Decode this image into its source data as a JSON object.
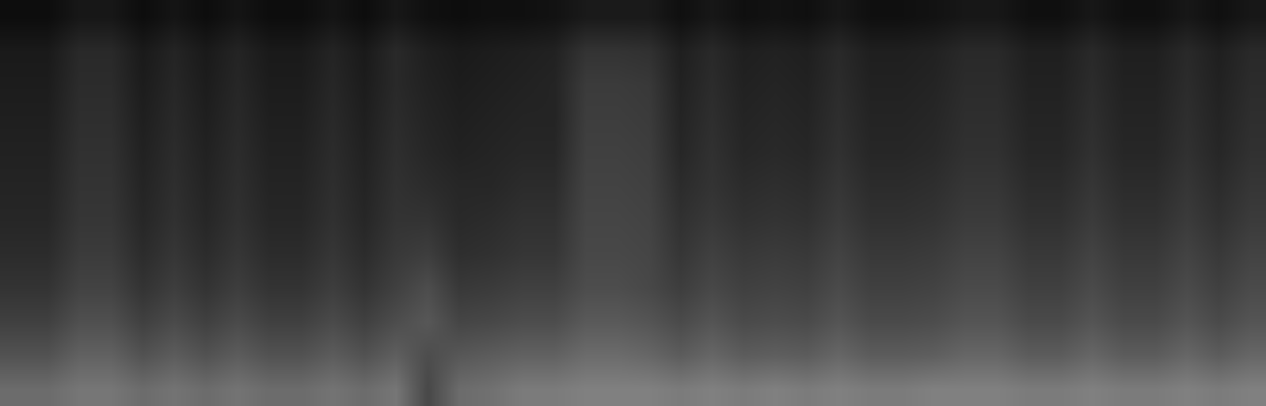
{
  "chart_data": {
    "type": "heatmap",
    "tick_labels": false,
    "grid": false,
    "zlim": [
      0,
      1
    ],
    "cells": [
      [
        0.42,
        0.42,
        0.46,
        0.46,
        0.42,
        0.45,
        0.42,
        0.45,
        0.42,
        0.42,
        0.45,
        0.42,
        0.46,
        0.28,
        0.42,
        0.44,
        0.48,
        0.48,
        0.5,
        0.5,
        0.5,
        0.48,
        0.5,
        0.48,
        0.5,
        0.48,
        0.5,
        0.48,
        0.48,
        0.5,
        0.5,
        0.5,
        0.48,
        0.48,
        0.5,
        0.48,
        0.48,
        0.5,
        0.48,
        0.5
      ],
      [
        0.32,
        0.32,
        0.38,
        0.38,
        0.32,
        0.36,
        0.32,
        0.36,
        0.32,
        0.32,
        0.36,
        0.32,
        0.37,
        0.3,
        0.34,
        0.36,
        0.38,
        0.38,
        0.42,
        0.42,
        0.4,
        0.36,
        0.4,
        0.36,
        0.37,
        0.36,
        0.4,
        0.36,
        0.36,
        0.37,
        0.4,
        0.4,
        0.36,
        0.36,
        0.4,
        0.36,
        0.36,
        0.4,
        0.36,
        0.4
      ],
      [
        0.25,
        0.25,
        0.31,
        0.31,
        0.25,
        0.29,
        0.25,
        0.29,
        0.25,
        0.25,
        0.29,
        0.25,
        0.3,
        0.34,
        0.27,
        0.28,
        0.3,
        0.3,
        0.35,
        0.35,
        0.33,
        0.29,
        0.33,
        0.29,
        0.3,
        0.29,
        0.33,
        0.29,
        0.29,
        0.3,
        0.33,
        0.33,
        0.29,
        0.29,
        0.33,
        0.29,
        0.29,
        0.33,
        0.29,
        0.33
      ],
      [
        0.2,
        0.2,
        0.26,
        0.26,
        0.2,
        0.24,
        0.2,
        0.24,
        0.2,
        0.2,
        0.24,
        0.2,
        0.25,
        0.3,
        0.22,
        0.23,
        0.25,
        0.25,
        0.3,
        0.3,
        0.28,
        0.24,
        0.28,
        0.25,
        0.26,
        0.25,
        0.29,
        0.25,
        0.25,
        0.26,
        0.29,
        0.29,
        0.25,
        0.25,
        0.29,
        0.25,
        0.25,
        0.29,
        0.25,
        0.29
      ],
      [
        0.17,
        0.17,
        0.23,
        0.23,
        0.17,
        0.21,
        0.17,
        0.21,
        0.17,
        0.17,
        0.21,
        0.17,
        0.22,
        0.24,
        0.18,
        0.19,
        0.21,
        0.21,
        0.28,
        0.28,
        0.27,
        0.21,
        0.25,
        0.22,
        0.23,
        0.22,
        0.26,
        0.22,
        0.22,
        0.23,
        0.26,
        0.26,
        0.22,
        0.22,
        0.26,
        0.22,
        0.22,
        0.26,
        0.22,
        0.26
      ],
      [
        0.15,
        0.15,
        0.21,
        0.21,
        0.15,
        0.19,
        0.15,
        0.19,
        0.15,
        0.15,
        0.19,
        0.15,
        0.2,
        0.2,
        0.16,
        0.17,
        0.19,
        0.19,
        0.27,
        0.27,
        0.26,
        0.19,
        0.22,
        0.19,
        0.2,
        0.19,
        0.23,
        0.19,
        0.19,
        0.2,
        0.23,
        0.23,
        0.19,
        0.19,
        0.23,
        0.19,
        0.19,
        0.23,
        0.19,
        0.23
      ],
      [
        0.14,
        0.14,
        0.2,
        0.2,
        0.14,
        0.18,
        0.14,
        0.18,
        0.14,
        0.14,
        0.18,
        0.14,
        0.19,
        0.17,
        0.15,
        0.15,
        0.17,
        0.17,
        0.26,
        0.26,
        0.25,
        0.17,
        0.2,
        0.17,
        0.18,
        0.17,
        0.21,
        0.17,
        0.17,
        0.18,
        0.21,
        0.21,
        0.17,
        0.17,
        0.21,
        0.17,
        0.17,
        0.21,
        0.17,
        0.21
      ],
      [
        0.13,
        0.13,
        0.19,
        0.19,
        0.13,
        0.17,
        0.13,
        0.17,
        0.13,
        0.13,
        0.17,
        0.13,
        0.18,
        0.15,
        0.13,
        0.14,
        0.15,
        0.15,
        0.25,
        0.25,
        0.24,
        0.15,
        0.19,
        0.15,
        0.16,
        0.15,
        0.19,
        0.15,
        0.15,
        0.16,
        0.19,
        0.19,
        0.15,
        0.15,
        0.19,
        0.15,
        0.15,
        0.19,
        0.15,
        0.19
      ],
      [
        0.12,
        0.12,
        0.18,
        0.18,
        0.12,
        0.16,
        0.12,
        0.16,
        0.12,
        0.12,
        0.16,
        0.12,
        0.17,
        0.14,
        0.12,
        0.13,
        0.14,
        0.14,
        0.24,
        0.24,
        0.23,
        0.14,
        0.18,
        0.14,
        0.15,
        0.14,
        0.18,
        0.14,
        0.14,
        0.15,
        0.18,
        0.18,
        0.14,
        0.14,
        0.18,
        0.14,
        0.14,
        0.18,
        0.14,
        0.18
      ],
      [
        0.11,
        0.11,
        0.17,
        0.17,
        0.11,
        0.15,
        0.11,
        0.15,
        0.11,
        0.11,
        0.15,
        0.11,
        0.16,
        0.13,
        0.11,
        0.12,
        0.13,
        0.14,
        0.23,
        0.23,
        0.22,
        0.13,
        0.17,
        0.13,
        0.14,
        0.13,
        0.17,
        0.13,
        0.13,
        0.14,
        0.17,
        0.17,
        0.13,
        0.13,
        0.17,
        0.13,
        0.13,
        0.17,
        0.13,
        0.17
      ],
      [
        0.1,
        0.1,
        0.16,
        0.16,
        0.1,
        0.14,
        0.1,
        0.14,
        0.1,
        0.1,
        0.14,
        0.1,
        0.16,
        0.12,
        0.1,
        0.11,
        0.12,
        0.13,
        0.2,
        0.2,
        0.19,
        0.12,
        0.16,
        0.12,
        0.13,
        0.12,
        0.16,
        0.12,
        0.12,
        0.13,
        0.16,
        0.16,
        0.12,
        0.12,
        0.16,
        0.12,
        0.12,
        0.16,
        0.12,
        0.16
      ],
      [
        0.05,
        0.05,
        0.09,
        0.09,
        0.05,
        0.08,
        0.05,
        0.08,
        0.05,
        0.05,
        0.08,
        0.05,
        0.09,
        0.06,
        0.05,
        0.06,
        0.06,
        0.07,
        0.1,
        0.1,
        0.1,
        0.06,
        0.09,
        0.06,
        0.07,
        0.06,
        0.09,
        0.06,
        0.06,
        0.07,
        0.09,
        0.09,
        0.06,
        0.06,
        0.09,
        0.06,
        0.06,
        0.09,
        0.06,
        0.09
      ]
    ]
  }
}
